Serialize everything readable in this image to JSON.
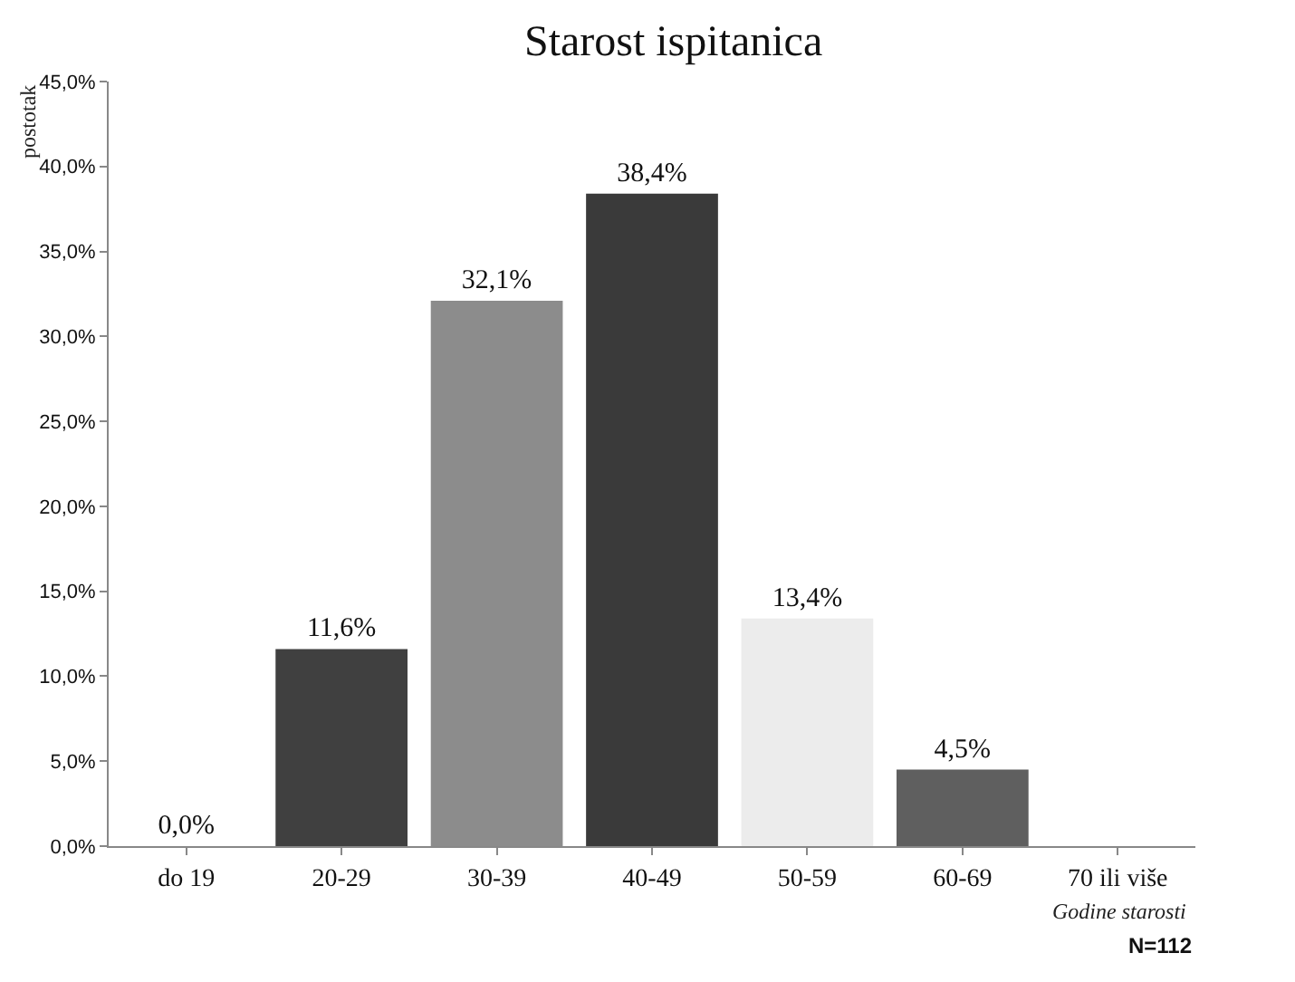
{
  "chart_data": {
    "type": "bar",
    "title": "Starost ispitanica",
    "ylabel": "postotak",
    "xlabel": "Godine starosti",
    "categories": [
      "do 19",
      "20-29",
      "30-39",
      "40-49",
      "50-59",
      "60-69",
      "70 ili više"
    ],
    "values": [
      0.0,
      11.6,
      32.1,
      38.4,
      13.4,
      4.5,
      null
    ],
    "colors": [
      "#404040",
      "#404040",
      "#8c8c8c",
      "#3a3a3a",
      "#ececec",
      "#5f5f5f",
      "#5f5f5f"
    ],
    "value_labels": [
      "0,0%",
      "11,6%",
      "32,1%",
      "38,4%",
      "13,4%",
      "4,5%",
      null
    ],
    "ylim": [
      0,
      45
    ],
    "yticks": [
      {
        "value": 0,
        "label": "0,0%"
      },
      {
        "value": 5,
        "label": "5,0%"
      },
      {
        "value": 10,
        "label": "10,0%"
      },
      {
        "value": 15,
        "label": "15,0%"
      },
      {
        "value": 20,
        "label": "20,0%"
      },
      {
        "value": 25,
        "label": "25,0%"
      },
      {
        "value": 30,
        "label": "30,0%"
      },
      {
        "value": 35,
        "label": "35,0%"
      },
      {
        "value": 40,
        "label": "40,0%"
      },
      {
        "value": 45,
        "label": "45,0%"
      }
    ],
    "grid": false,
    "annotations": [
      "N=112"
    ]
  }
}
